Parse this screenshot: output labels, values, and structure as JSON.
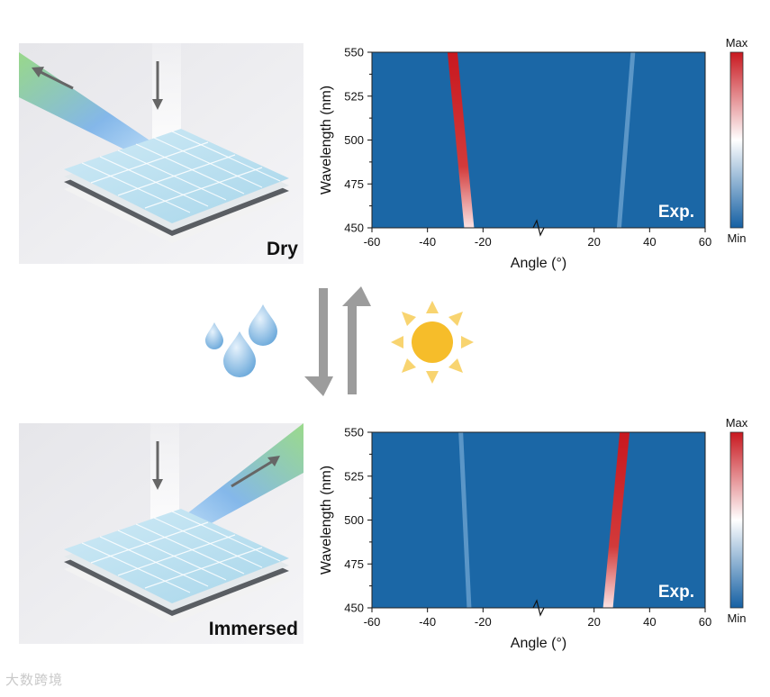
{
  "panels": [
    {
      "label": "Dry"
    },
    {
      "label": "Immersed"
    }
  ],
  "colorbar": {
    "max_label": "Max",
    "min_label": "Min"
  },
  "watermark": "大数跨境",
  "colors": {
    "background": "#1b67a6",
    "high": "#c8181f",
    "mid": "#ffffff",
    "low": "#1560a3",
    "sun": "#f6bd2a",
    "arrow": "#9c9c9c",
    "droplet": "#6aa7d8"
  },
  "chart_data": [
    {
      "type": "heatmap",
      "panel": "Dry",
      "xlabel": "Angle (°)",
      "ylabel": "Wavelength (nm)",
      "xlim": [
        -60,
        60
      ],
      "ylim": [
        450,
        550
      ],
      "xticks": [
        -60,
        -40,
        -20,
        20,
        40,
        60
      ],
      "yticks": [
        450,
        475,
        500,
        525,
        550
      ],
      "axis_break": "between -20 and 20",
      "annotation": "Exp.",
      "colorbar_labels": [
        "Max",
        "Min"
      ],
      "series": [
        {
          "angle_at_450": -25,
          "angle_at_550": -31,
          "intensity": "max"
        },
        {
          "angle_at_450": 29,
          "angle_at_550": 34,
          "intensity": "low"
        }
      ]
    },
    {
      "type": "heatmap",
      "panel": "Immersed",
      "xlabel": "Angle (°)",
      "ylabel": "Wavelength (nm)",
      "xlim": [
        -60,
        60
      ],
      "ylim": [
        450,
        550
      ],
      "xticks": [
        -60,
        -40,
        -20,
        20,
        40,
        60
      ],
      "yticks": [
        450,
        475,
        500,
        525,
        550
      ],
      "axis_break": "between -20 and 20",
      "annotation": "Exp.",
      "colorbar_labels": [
        "Max",
        "Min"
      ],
      "series": [
        {
          "angle_at_450": -25,
          "angle_at_550": -28,
          "intensity": "low"
        },
        {
          "angle_at_450": 25,
          "angle_at_550": 31,
          "intensity": "max"
        }
      ]
    }
  ]
}
